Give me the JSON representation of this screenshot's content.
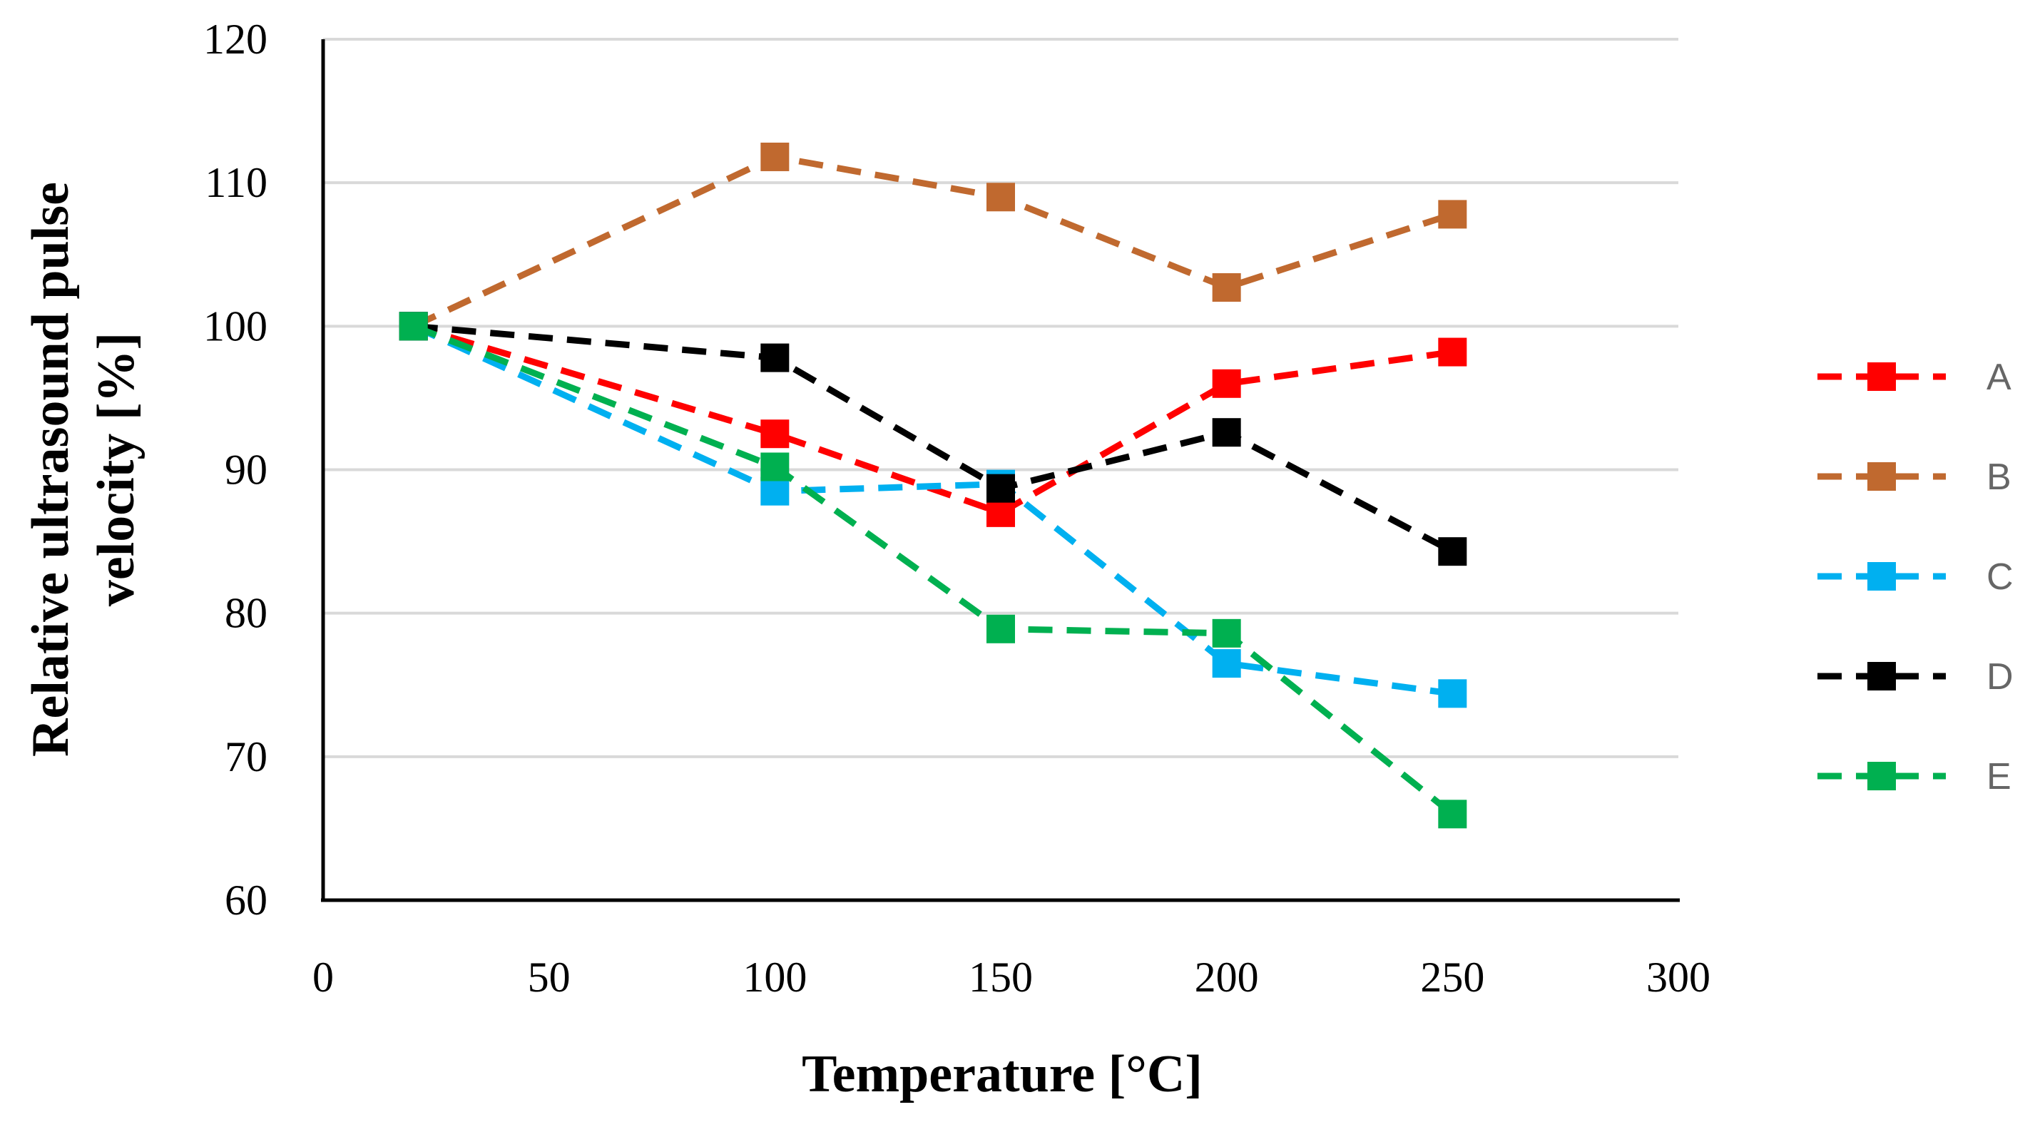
{
  "chart_data": {
    "type": "line",
    "title": "",
    "xlabel": "Temperature [°C]",
    "ylabel_lines": [
      "Relative ultrasound pulse",
      "velocity [%]"
    ],
    "xlim": [
      0,
      300
    ],
    "ylim": [
      60,
      120
    ],
    "xticks": [
      0,
      50,
      100,
      150,
      200,
      250,
      300
    ],
    "yticks": [
      60,
      70,
      80,
      90,
      100,
      110,
      120
    ],
    "grid": "horizontal",
    "legend_position": "right",
    "x": [
      20,
      100,
      150,
      200,
      250
    ],
    "series": [
      {
        "name": "A",
        "color": "#ff0000",
        "values": [
          100,
          92.5,
          87.0,
          96.0,
          98.2
        ]
      },
      {
        "name": "B",
        "color": "#c0692f",
        "values": [
          100,
          111.8,
          109.0,
          102.7,
          107.8
        ]
      },
      {
        "name": "C",
        "color": "#00b0f0",
        "values": [
          100,
          88.5,
          89.0,
          76.5,
          74.4
        ]
      },
      {
        "name": "D",
        "color": "#000000",
        "values": [
          100,
          97.8,
          88.7,
          92.6,
          84.3
        ]
      },
      {
        "name": "E",
        "color": "#00b050",
        "values": [
          100,
          90.2,
          78.9,
          78.6,
          66.0
        ]
      }
    ]
  }
}
